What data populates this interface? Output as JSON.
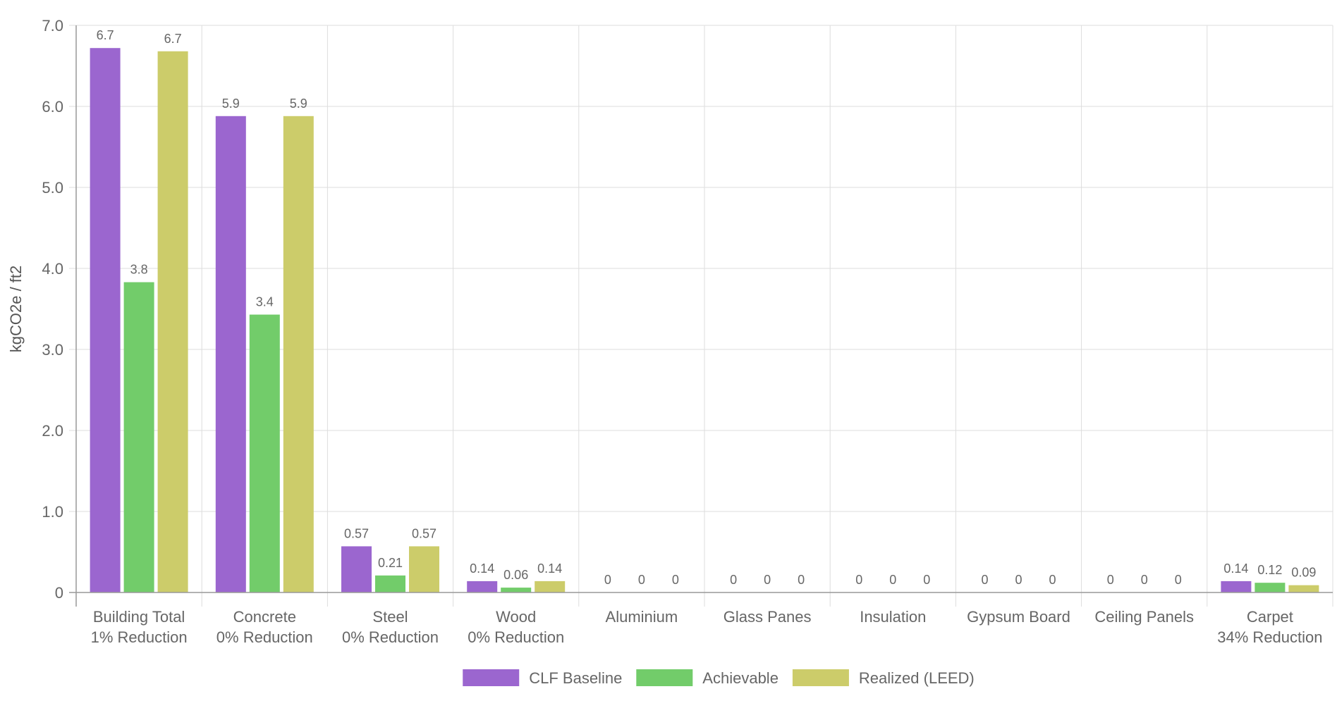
{
  "chart_data": {
    "type": "bar",
    "categories": [
      [
        "Building Total",
        "1% Reduction"
      ],
      [
        "Concrete",
        "0% Reduction"
      ],
      [
        "Steel",
        "0% Reduction"
      ],
      [
        "Wood",
        "0% Reduction"
      ],
      [
        "Aluminium"
      ],
      [
        "Glass Panes"
      ],
      [
        "Insulation"
      ],
      [
        "Gypsum Board"
      ],
      [
        "Ceiling Panels"
      ],
      [
        "Carpet",
        "34% Reduction"
      ]
    ],
    "series": [
      {
        "name": "CLF Baseline",
        "color": "#9b66cf",
        "values": [
          6.72,
          5.88,
          0.57,
          0.14,
          0,
          0,
          0,
          0,
          0,
          0.14
        ],
        "labels": [
          "6.7",
          "5.9",
          "0.57",
          "0.14",
          "0",
          "0",
          "0",
          "0",
          "0",
          "0.14"
        ]
      },
      {
        "name": "Achievable",
        "color": "#72cc6a",
        "values": [
          3.83,
          3.43,
          0.21,
          0.06,
          0,
          0,
          0,
          0,
          0,
          0.12
        ],
        "labels": [
          "3.8",
          "3.4",
          "0.21",
          "0.06",
          "0",
          "0",
          "0",
          "0",
          "0",
          "0.12"
        ]
      },
      {
        "name": "Realized (LEED)",
        "color": "#cccc6a",
        "values": [
          6.68,
          5.88,
          0.57,
          0.14,
          0,
          0,
          0,
          0,
          0,
          0.09
        ],
        "labels": [
          "6.7",
          "5.9",
          "0.57",
          "0.14",
          "0",
          "0",
          "0",
          "0",
          "0",
          "0.09"
        ]
      }
    ],
    "title": "",
    "xlabel": "",
    "ylabel": "kgCO2e / ft2",
    "ylim": [
      0,
      7
    ],
    "yticks": [
      {
        "value": 0,
        "label": "0"
      },
      {
        "value": 1,
        "label": "1.0"
      },
      {
        "value": 2,
        "label": "2.0"
      },
      {
        "value": 3,
        "label": "3.0"
      },
      {
        "value": 4,
        "label": "4.0"
      },
      {
        "value": 5,
        "label": "5.0"
      },
      {
        "value": 6,
        "label": "6.0"
      },
      {
        "value": 7,
        "label": "7.0"
      }
    ],
    "grid": true,
    "legend_position": "bottom-center"
  }
}
